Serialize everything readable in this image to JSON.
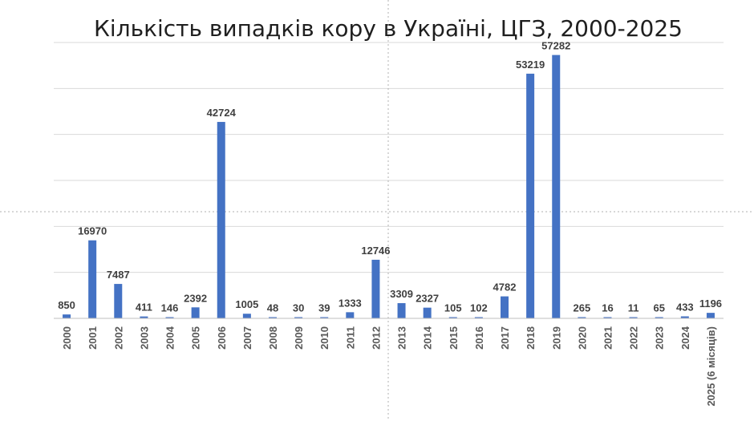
{
  "chart_data": {
    "type": "bar",
    "title": "Кількість випадків кору в Україні, ЦГЗ, 2000-2025",
    "categories": [
      "2000",
      "2001",
      "2002",
      "2003",
      "2004",
      "2005",
      "2006",
      "2007",
      "2008",
      "2009",
      "2010",
      "2011",
      "2012",
      "2013",
      "2014",
      "2015",
      "2016",
      "2017",
      "2018",
      "2019",
      "2020",
      "2021",
      "2022",
      "2023",
      "2024",
      "2025 (6 місяців)"
    ],
    "values": [
      850,
      16970,
      7487,
      411,
      146,
      2392,
      42724,
      1005,
      48,
      30,
      39,
      1333,
      12746,
      3309,
      2327,
      105,
      102,
      4782,
      53219,
      57282,
      265,
      16,
      11,
      65,
      433,
      1196
    ],
    "data_labels": [
      "850",
      "16970",
      "7487",
      "411",
      "146",
      "2392",
      "42724",
      "1005",
      "48",
      "30",
      "39",
      "1333",
      "12746",
      "3309",
      "2327",
      "105",
      "102",
      "4782",
      "53219",
      "57282",
      "265",
      "16",
      "11",
      "65",
      "433",
      "1196"
    ],
    "ylim": [
      0,
      60000
    ],
    "grid": true,
    "y_tick_labels_visible": false,
    "bar_color": "#4472c4"
  }
}
